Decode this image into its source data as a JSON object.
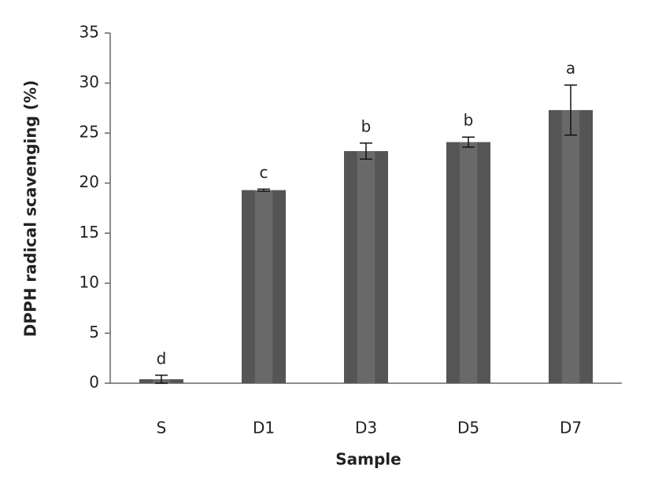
{
  "chart_data": {
    "type": "bar",
    "x_label": "Sample",
    "y_label": "DPPH radical scavenging  (%)",
    "categories": [
      "S",
      "D1",
      "D3",
      "D5",
      "D7"
    ],
    "values": [
      0.4,
      19.3,
      23.2,
      24.1,
      27.3
    ],
    "errors": [
      0.4,
      0.1,
      0.8,
      0.5,
      2.5
    ],
    "annotations": [
      "d",
      "c",
      "b",
      "b",
      "a"
    ],
    "color": "#555555",
    "ylim": [
      0,
      35
    ],
    "yticks": [
      0,
      5,
      10,
      15,
      20,
      25,
      30,
      35
    ]
  }
}
